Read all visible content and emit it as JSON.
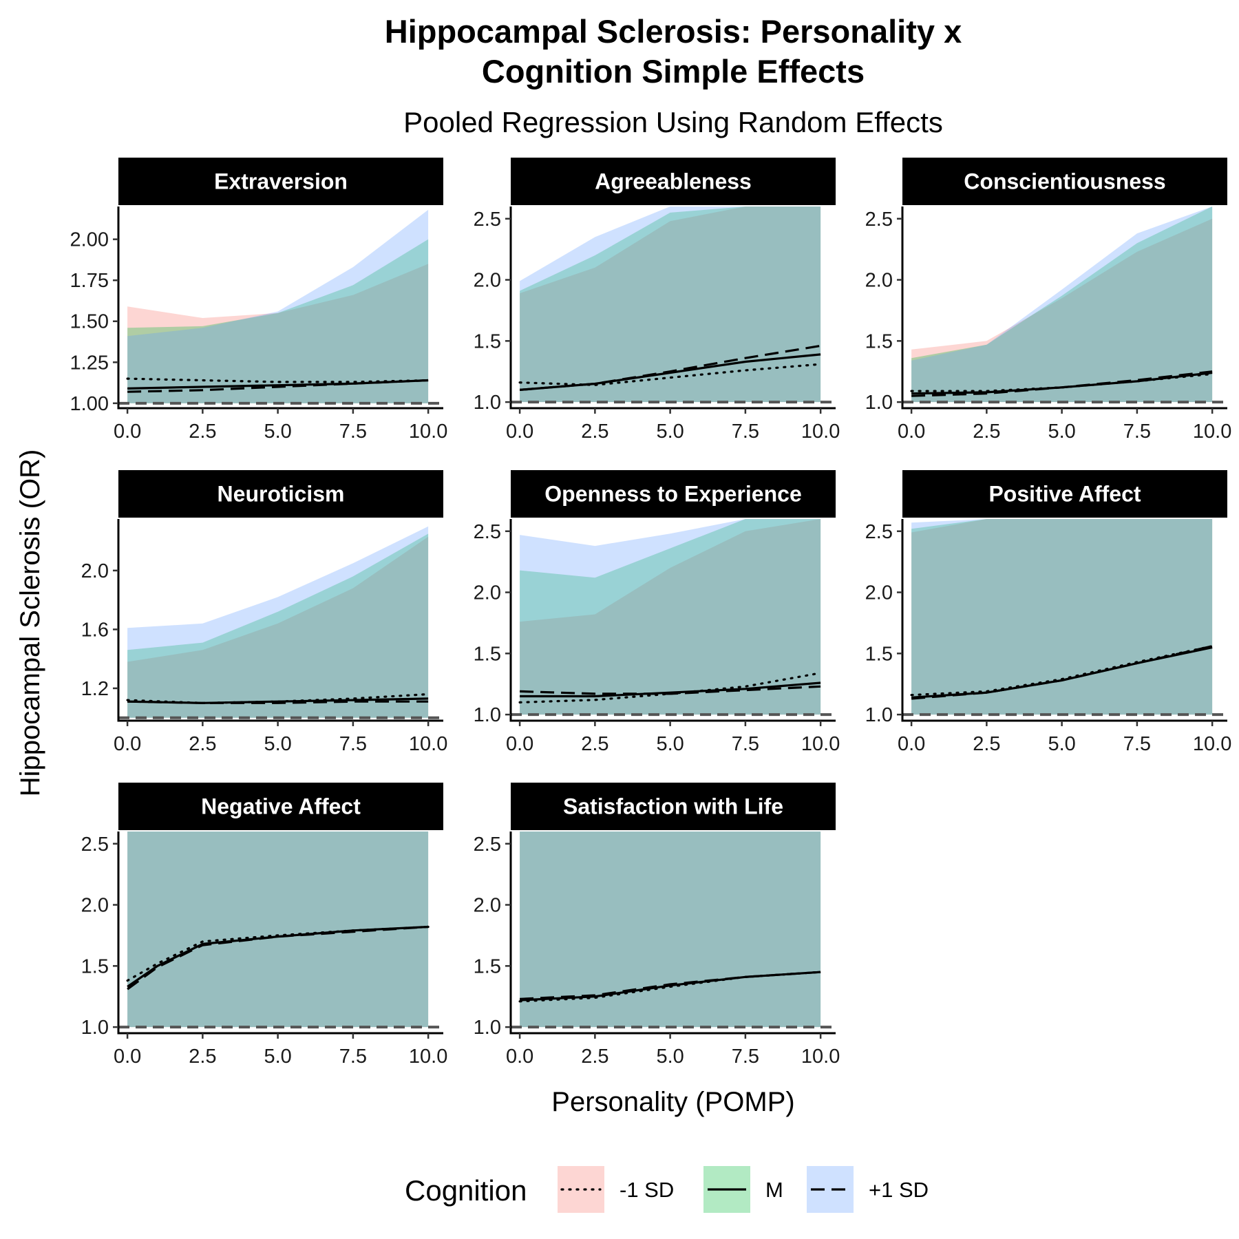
{
  "title_line1": "Hippocampal Sclerosis: Personality x",
  "title_line2": "Cognition Simple Effects",
  "subtitle": "Pooled Regression Using Random Effects",
  "y_axis_title": "Hippocampal Sclerosis (OR)",
  "x_axis_title": "Personality (POMP)",
  "legend": {
    "title": "Cognition",
    "items": [
      {
        "label": "-1 SD",
        "linestyle": "dotted",
        "fill": "#F8766D"
      },
      {
        "label": "M",
        "linestyle": "solid",
        "fill": "#00BA38"
      },
      {
        "label": "+1 SD",
        "linestyle": "dashed",
        "fill": "#619CFF"
      }
    ]
  },
  "colors": {
    "ribbon_low": "#F8766D",
    "ribbon_mid": "#00BA38",
    "ribbon_high": "#619CFF",
    "overlap": "#A6C6C5",
    "strip": "#000000",
    "reference_line": "#555555"
  },
  "chart_data": {
    "type": "line",
    "facets": [
      {
        "name": "Extraversion",
        "ylim": [
          0.97,
          2.2
        ],
        "y_ticks": [
          1.0,
          1.25,
          1.5,
          1.75,
          2.0
        ],
        "y_tick_labels": [
          "1.00",
          "1.25",
          "1.50",
          "1.75",
          "2.00"
        ],
        "x": [
          0,
          2.5,
          5,
          7.5,
          10
        ],
        "series": [
          {
            "name": "-1 SD",
            "values": [
              1.15,
              1.14,
              1.13,
              1.13,
              1.14
            ],
            "upper": [
              1.59,
              1.52,
              1.55,
              1.66,
              1.85
            ]
          },
          {
            "name": "M",
            "values": [
              1.09,
              1.1,
              1.11,
              1.12,
              1.14
            ],
            "upper": [
              1.46,
              1.47,
              1.55,
              1.72,
              2.0
            ]
          },
          {
            "name": "+1 SD",
            "values": [
              1.07,
              1.08,
              1.1,
              1.12,
              1.14
            ],
            "upper": [
              1.41,
              1.46,
              1.56,
              1.83,
              2.18
            ]
          }
        ]
      },
      {
        "name": "Agreeableness",
        "ylim": [
          0.95,
          2.6
        ],
        "y_ticks": [
          1.0,
          1.5,
          2.0,
          2.5
        ],
        "y_tick_labels": [
          "1.0",
          "1.5",
          "2.0",
          "2.5"
        ],
        "x": [
          0,
          2.5,
          5,
          7.5,
          10
        ],
        "series": [
          {
            "name": "-1 SD",
            "values": [
              1.16,
              1.14,
              1.2,
              1.26,
              1.31
            ],
            "upper": [
              1.89,
              2.1,
              2.48,
              2.6,
              2.6
            ]
          },
          {
            "name": "M",
            "values": [
              1.1,
              1.15,
              1.24,
              1.33,
              1.39
            ],
            "upper": [
              1.91,
              2.2,
              2.55,
              2.6,
              2.6
            ]
          },
          {
            "name": "+1 SD",
            "values": [
              1.1,
              1.15,
              1.25,
              1.36,
              1.46
            ],
            "upper": [
              1.99,
              2.35,
              2.6,
              2.6,
              2.6
            ]
          }
        ]
      },
      {
        "name": "Conscientiousness",
        "ylim": [
          0.95,
          2.6
        ],
        "y_ticks": [
          1.0,
          1.5,
          2.0,
          2.5
        ],
        "y_tick_labels": [
          "1.0",
          "1.5",
          "2.0",
          "2.5"
        ],
        "x": [
          0,
          2.5,
          5,
          7.5,
          10
        ],
        "series": [
          {
            "name": "-1 SD",
            "values": [
              1.09,
              1.09,
              1.12,
              1.17,
              1.23
            ],
            "upper": [
              1.43,
              1.5,
              1.85,
              2.23,
              2.5
            ]
          },
          {
            "name": "M",
            "values": [
              1.07,
              1.08,
              1.12,
              1.17,
              1.24
            ],
            "upper": [
              1.36,
              1.47,
              1.87,
              2.3,
              2.6
            ]
          },
          {
            "name": "+1 SD",
            "values": [
              1.05,
              1.07,
              1.12,
              1.18,
              1.25
            ],
            "upper": [
              1.34,
              1.47,
              1.92,
              2.38,
              2.6
            ]
          }
        ]
      },
      {
        "name": "Neuroticism",
        "ylim": [
          0.98,
          2.35
        ],
        "y_ticks": [
          1.2,
          1.6,
          2.0
        ],
        "y_tick_labels": [
          "1.2",
          "1.6",
          "2.0"
        ],
        "x": [
          0,
          2.5,
          5,
          7.5,
          10
        ],
        "series": [
          {
            "name": "-1 SD",
            "values": [
              1.12,
              1.1,
              1.11,
              1.13,
              1.16
            ],
            "upper": [
              1.38,
              1.46,
              1.64,
              1.88,
              2.23
            ]
          },
          {
            "name": "M",
            "values": [
              1.11,
              1.1,
              1.11,
              1.12,
              1.13
            ],
            "upper": [
              1.46,
              1.51,
              1.72,
              1.96,
              2.25
            ]
          },
          {
            "name": "+1 SD",
            "values": [
              1.11,
              1.1,
              1.1,
              1.11,
              1.11
            ],
            "upper": [
              1.61,
              1.64,
              1.82,
              2.05,
              2.3
            ]
          }
        ]
      },
      {
        "name": "Openness to Experience",
        "ylim": [
          0.95,
          2.6
        ],
        "y_ticks": [
          1.0,
          1.5,
          2.0,
          2.5
        ],
        "y_tick_labels": [
          "1.0",
          "1.5",
          "2.0",
          "2.5"
        ],
        "x": [
          0,
          2.5,
          5,
          7.5,
          10
        ],
        "series": [
          {
            "name": "-1 SD",
            "values": [
              1.1,
              1.12,
              1.17,
              1.23,
              1.34
            ],
            "upper": [
              1.76,
              1.82,
              2.2,
              2.5,
              2.6
            ]
          },
          {
            "name": "M",
            "values": [
              1.15,
              1.15,
              1.18,
              1.21,
              1.26
            ],
            "upper": [
              2.18,
              2.12,
              2.36,
              2.6,
              2.6
            ]
          },
          {
            "name": "+1 SD",
            "values": [
              1.19,
              1.17,
              1.17,
              1.2,
              1.23
            ],
            "upper": [
              2.47,
              2.38,
              2.48,
              2.6,
              2.6
            ]
          }
        ]
      },
      {
        "name": "Positive Affect",
        "ylim": [
          0.95,
          2.6
        ],
        "y_ticks": [
          1.0,
          1.5,
          2.0,
          2.5
        ],
        "y_tick_labels": [
          "1.0",
          "1.5",
          "2.0",
          "2.5"
        ],
        "x": [
          0,
          2.5,
          5,
          7.5,
          10
        ],
        "series": [
          {
            "name": "-1 SD",
            "values": [
              1.16,
              1.19,
              1.29,
              1.43,
              1.56
            ],
            "upper": [
              2.49,
              2.6,
              2.6,
              2.6,
              2.6
            ]
          },
          {
            "name": "M",
            "values": [
              1.14,
              1.18,
              1.28,
              1.42,
              1.55
            ],
            "upper": [
              2.52,
              2.6,
              2.6,
              2.6,
              2.6
            ]
          },
          {
            "name": "+1 SD",
            "values": [
              1.13,
              1.18,
              1.28,
              1.42,
              1.56
            ],
            "upper": [
              2.57,
              2.6,
              2.6,
              2.6,
              2.6
            ]
          }
        ]
      },
      {
        "name": "Negative Affect",
        "ylim": [
          0.95,
          2.6
        ],
        "y_ticks": [
          1.0,
          1.5,
          2.0,
          2.5
        ],
        "y_tick_labels": [
          "1.0",
          "1.5",
          "2.0",
          "2.5"
        ],
        "x": [
          0,
          1,
          2.5,
          5,
          7.5,
          10
        ],
        "series": [
          {
            "name": "-1 SD",
            "values": [
              1.38,
              1.52,
              1.7,
              1.75,
              1.79,
              1.82
            ],
            "upper": [
              2.6,
              2.6,
              2.6,
              2.6,
              2.6,
              2.6
            ]
          },
          {
            "name": "M",
            "values": [
              1.33,
              1.5,
              1.68,
              1.74,
              1.79,
              1.82
            ],
            "upper": [
              2.6,
              2.6,
              2.6,
              2.6,
              2.6,
              2.6
            ]
          },
          {
            "name": "+1 SD",
            "values": [
              1.31,
              1.49,
              1.67,
              1.74,
              1.78,
              1.82
            ],
            "upper": [
              2.6,
              2.6,
              2.6,
              2.6,
              2.6,
              2.6
            ]
          }
        ]
      },
      {
        "name": "Satisfaction with Life",
        "ylim": [
          0.95,
          2.6
        ],
        "y_ticks": [
          1.0,
          1.5,
          2.0,
          2.5
        ],
        "y_tick_labels": [
          "1.0",
          "1.5",
          "2.0",
          "2.5"
        ],
        "x": [
          0,
          2.5,
          5,
          7.5,
          10
        ],
        "series": [
          {
            "name": "-1 SD",
            "values": [
              1.21,
              1.24,
              1.33,
              1.41,
              1.45
            ],
            "upper": [
              2.6,
              2.6,
              2.6,
              2.6,
              2.6
            ]
          },
          {
            "name": "M",
            "values": [
              1.22,
              1.25,
              1.34,
              1.41,
              1.45
            ],
            "upper": [
              2.6,
              2.6,
              2.6,
              2.6,
              2.6
            ]
          },
          {
            "name": "+1 SD",
            "values": [
              1.23,
              1.26,
              1.35,
              1.41,
              1.45
            ],
            "upper": [
              2.6,
              2.6,
              2.6,
              2.6,
              2.6
            ]
          }
        ]
      }
    ],
    "x_ticks": [
      0,
      2.5,
      5,
      7.5,
      10
    ],
    "x_tick_labels": [
      "0.0",
      "2.5",
      "5.0",
      "7.5",
      "10.0"
    ],
    "xlim": [
      -0.3,
      10.5
    ],
    "reference_line_y": 1.0,
    "ribbon_lower": 1.0,
    "grid": false,
    "legend_position": "bottom"
  }
}
